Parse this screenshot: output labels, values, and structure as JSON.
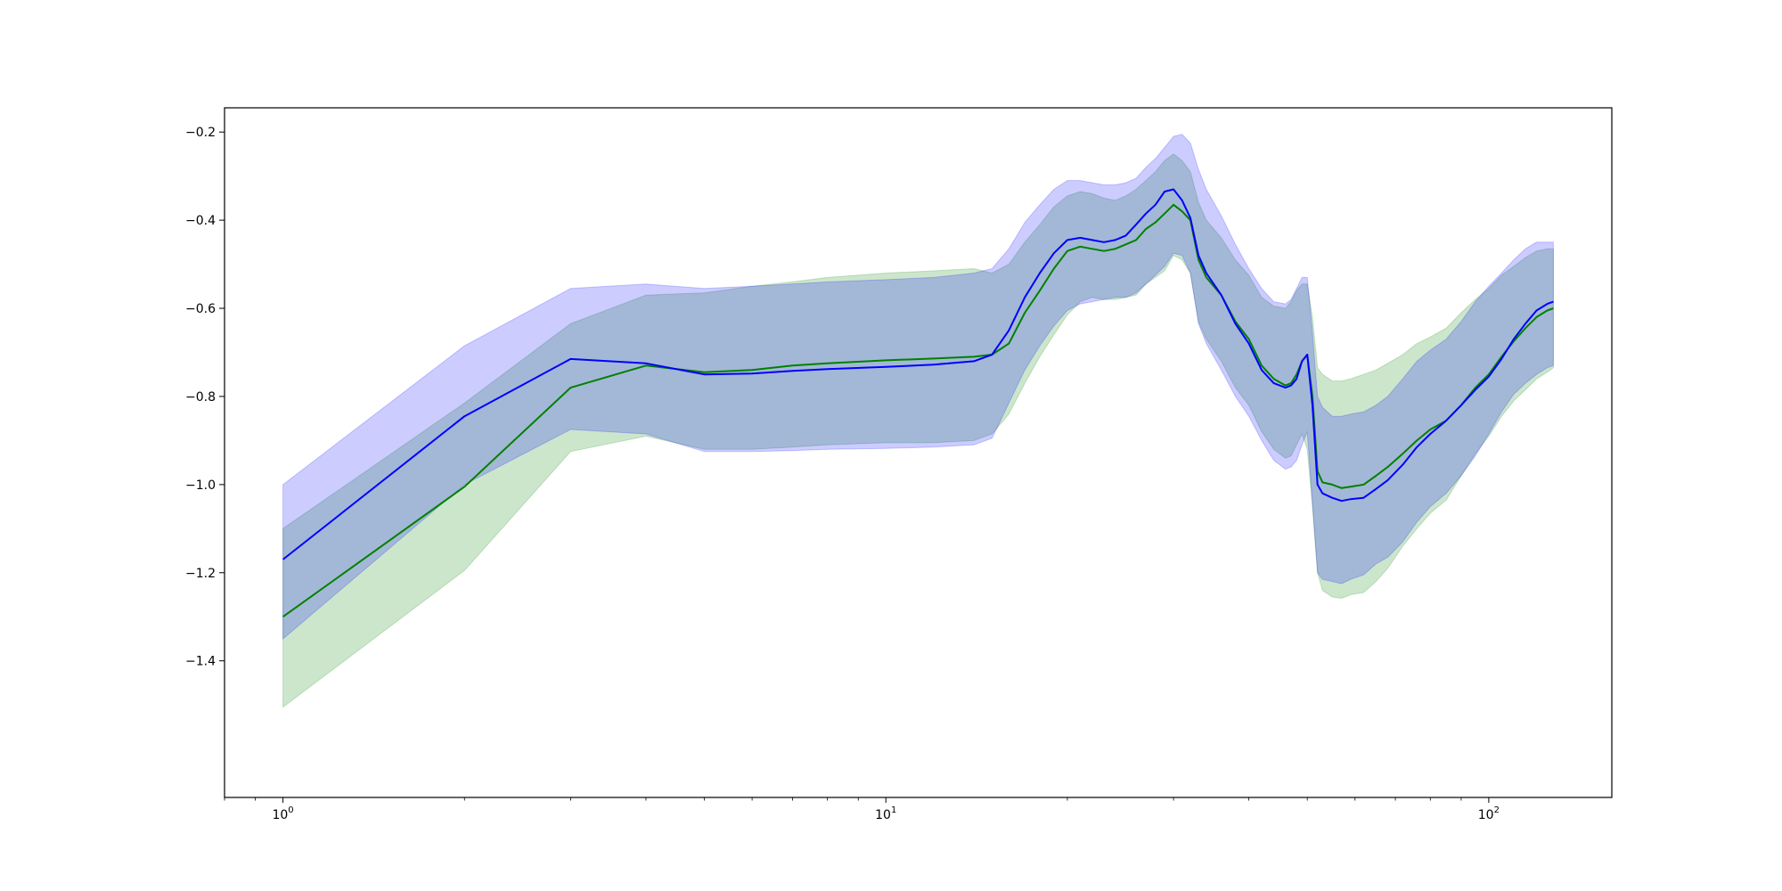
{
  "chart_data": {
    "type": "line",
    "title": "",
    "xlabel": "",
    "ylabel": "",
    "xscale": "log",
    "xlim": [
      0.8,
      160
    ],
    "ylim": [
      -1.71,
      -0.145
    ],
    "grid": false,
    "legend": "none",
    "x_ticks": [
      {
        "value": 1,
        "base": "10",
        "exp": "0"
      },
      {
        "value": 10,
        "base": "10",
        "exp": "1"
      },
      {
        "value": 100,
        "base": "10",
        "exp": "2"
      }
    ],
    "y_ticks": [
      {
        "value": -0.2,
        "label": "−0.2"
      },
      {
        "value": -0.4,
        "label": "−0.4"
      },
      {
        "value": -0.6,
        "label": "−0.6"
      },
      {
        "value": -0.8,
        "label": "−0.8"
      },
      {
        "value": -1.0,
        "label": "−1.0"
      },
      {
        "value": -1.2,
        "label": "−1.2"
      },
      {
        "value": -1.4,
        "label": "−1.4"
      }
    ],
    "series": [
      {
        "color": "#008000",
        "band_color": "#008000",
        "x": [
          1,
          2,
          3,
          4,
          5,
          6,
          7,
          8,
          10,
          12,
          14,
          15,
          16,
          17,
          18,
          19,
          20,
          21,
          22,
          23,
          24,
          25,
          26,
          27,
          28,
          29,
          30,
          31,
          32,
          33,
          34,
          36,
          38,
          40,
          42,
          44,
          46,
          47,
          48,
          49,
          50,
          51,
          52,
          53,
          55,
          57,
          59,
          62,
          65,
          68,
          72,
          76,
          80,
          85,
          90,
          95,
          100,
          105,
          110,
          115,
          120,
          125,
          128
        ],
        "mean": [
          -1.3,
          -1.005,
          -0.78,
          -0.73,
          -0.745,
          -0.74,
          -0.73,
          -0.725,
          -0.718,
          -0.714,
          -0.71,
          -0.705,
          -0.68,
          -0.61,
          -0.56,
          -0.51,
          -0.47,
          -0.46,
          -0.465,
          -0.47,
          -0.465,
          -0.455,
          -0.445,
          -0.42,
          -0.405,
          -0.385,
          -0.365,
          -0.38,
          -0.4,
          -0.49,
          -0.53,
          -0.57,
          -0.63,
          -0.67,
          -0.73,
          -0.76,
          -0.775,
          -0.77,
          -0.75,
          -0.72,
          -0.705,
          -0.8,
          -0.97,
          -0.995,
          -1.0,
          -1.008,
          -1.005,
          -1.0,
          -0.98,
          -0.96,
          -0.93,
          -0.9,
          -0.875,
          -0.855,
          -0.82,
          -0.78,
          -0.75,
          -0.71,
          -0.675,
          -0.645,
          -0.62,
          -0.605,
          -0.6
        ],
        "lower": [
          -1.505,
          -1.195,
          -0.925,
          -0.89,
          -0.92,
          -0.92,
          -0.915,
          -0.91,
          -0.905,
          -0.905,
          -0.9,
          -0.885,
          -0.84,
          -0.77,
          -0.71,
          -0.66,
          -0.615,
          -0.585,
          -0.575,
          -0.58,
          -0.58,
          -0.575,
          -0.57,
          -0.545,
          -0.53,
          -0.515,
          -0.48,
          -0.49,
          -0.52,
          -0.63,
          -0.67,
          -0.72,
          -0.78,
          -0.82,
          -0.88,
          -0.92,
          -0.94,
          -0.935,
          -0.91,
          -0.885,
          -0.92,
          -1.05,
          -1.2,
          -1.24,
          -1.255,
          -1.258,
          -1.25,
          -1.245,
          -1.22,
          -1.19,
          -1.14,
          -1.1,
          -1.065,
          -1.035,
          -0.98,
          -0.93,
          -0.89,
          -0.845,
          -0.81,
          -0.785,
          -0.76,
          -0.745,
          -0.735
        ],
        "upper": [
          -1.1,
          -0.815,
          -0.635,
          -0.57,
          -0.565,
          -0.55,
          -0.54,
          -0.53,
          -0.52,
          -0.515,
          -0.51,
          -0.52,
          -0.5,
          -0.45,
          -0.41,
          -0.37,
          -0.345,
          -0.335,
          -0.34,
          -0.35,
          -0.355,
          -0.345,
          -0.33,
          -0.31,
          -0.29,
          -0.265,
          -0.25,
          -0.265,
          -0.29,
          -0.36,
          -0.4,
          -0.44,
          -0.49,
          -0.525,
          -0.575,
          -0.595,
          -0.6,
          -0.585,
          -0.56,
          -0.545,
          -0.545,
          -0.62,
          -0.735,
          -0.75,
          -0.765,
          -0.765,
          -0.76,
          -0.75,
          -0.74,
          -0.725,
          -0.705,
          -0.68,
          -0.665,
          -0.645,
          -0.61,
          -0.58,
          -0.555,
          -0.525,
          -0.505,
          -0.485,
          -0.47,
          -0.465,
          -0.465
        ]
      },
      {
        "color": "#0000ff",
        "band_color": "#0000ff",
        "x": [
          1,
          2,
          3,
          4,
          5,
          6,
          7,
          8,
          10,
          12,
          14,
          15,
          16,
          17,
          18,
          19,
          20,
          21,
          22,
          23,
          24,
          25,
          26,
          27,
          28,
          29,
          30,
          31,
          32,
          33,
          34,
          36,
          38,
          40,
          42,
          44,
          46,
          47,
          48,
          49,
          50,
          51,
          52,
          53,
          55,
          57,
          59,
          62,
          65,
          68,
          72,
          76,
          80,
          85,
          90,
          95,
          100,
          105,
          110,
          115,
          120,
          125,
          128
        ],
        "mean": [
          -1.17,
          -0.845,
          -0.715,
          -0.725,
          -0.75,
          -0.748,
          -0.742,
          -0.738,
          -0.733,
          -0.728,
          -0.72,
          -0.705,
          -0.65,
          -0.575,
          -0.52,
          -0.475,
          -0.445,
          -0.44,
          -0.445,
          -0.45,
          -0.445,
          -0.435,
          -0.41,
          -0.385,
          -0.365,
          -0.335,
          -0.33,
          -0.355,
          -0.395,
          -0.48,
          -0.52,
          -0.57,
          -0.635,
          -0.68,
          -0.74,
          -0.77,
          -0.78,
          -0.775,
          -0.76,
          -0.72,
          -0.705,
          -0.82,
          -1.0,
          -1.02,
          -1.03,
          -1.037,
          -1.033,
          -1.03,
          -1.01,
          -0.99,
          -0.955,
          -0.915,
          -0.885,
          -0.855,
          -0.82,
          -0.785,
          -0.755,
          -0.715,
          -0.67,
          -0.635,
          -0.605,
          -0.59,
          -0.585
        ],
        "lower": [
          -1.35,
          -1.0,
          -0.875,
          -0.885,
          -0.925,
          -0.925,
          -0.923,
          -0.92,
          -0.918,
          -0.915,
          -0.91,
          -0.895,
          -0.815,
          -0.74,
          -0.685,
          -0.64,
          -0.605,
          -0.59,
          -0.585,
          -0.58,
          -0.575,
          -0.575,
          -0.565,
          -0.545,
          -0.525,
          -0.505,
          -0.475,
          -0.48,
          -0.52,
          -0.635,
          -0.68,
          -0.74,
          -0.8,
          -0.845,
          -0.9,
          -0.945,
          -0.965,
          -0.96,
          -0.945,
          -0.91,
          -0.88,
          -1.04,
          -1.2,
          -1.215,
          -1.22,
          -1.225,
          -1.215,
          -1.205,
          -1.18,
          -1.165,
          -1.13,
          -1.085,
          -1.05,
          -1.02,
          -0.98,
          -0.935,
          -0.885,
          -0.835,
          -0.795,
          -0.77,
          -0.75,
          -0.735,
          -0.73
        ],
        "upper": [
          -1.0,
          -0.685,
          -0.555,
          -0.545,
          -0.555,
          -0.55,
          -0.545,
          -0.54,
          -0.535,
          -0.53,
          -0.52,
          -0.51,
          -0.465,
          -0.405,
          -0.365,
          -0.33,
          -0.31,
          -0.31,
          -0.315,
          -0.32,
          -0.32,
          -0.315,
          -0.305,
          -0.28,
          -0.26,
          -0.235,
          -0.21,
          -0.205,
          -0.225,
          -0.285,
          -0.33,
          -0.39,
          -0.455,
          -0.51,
          -0.555,
          -0.585,
          -0.59,
          -0.58,
          -0.555,
          -0.53,
          -0.53,
          -0.655,
          -0.8,
          -0.825,
          -0.845,
          -0.845,
          -0.84,
          -0.835,
          -0.82,
          -0.8,
          -0.76,
          -0.72,
          -0.695,
          -0.67,
          -0.63,
          -0.585,
          -0.55,
          -0.52,
          -0.49,
          -0.465,
          -0.45,
          -0.45,
          -0.45
        ]
      }
    ]
  }
}
